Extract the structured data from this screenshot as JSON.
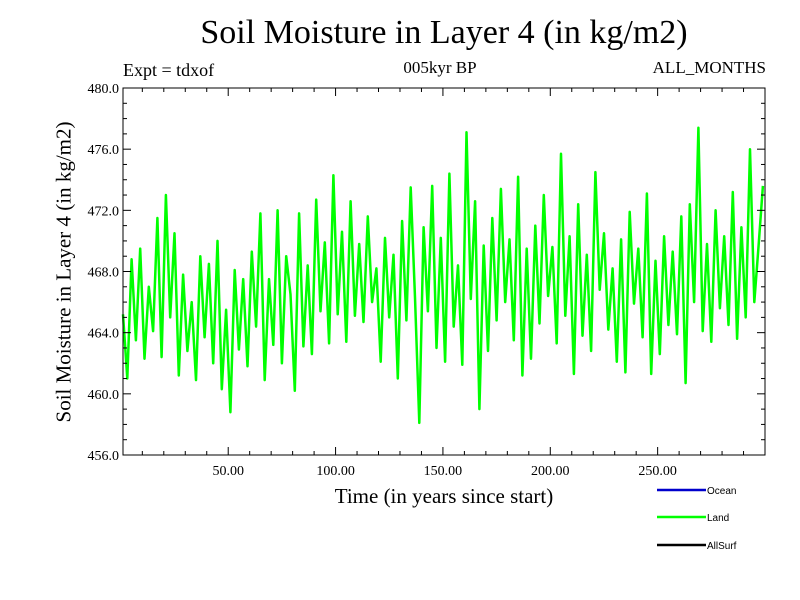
{
  "chart_data": {
    "type": "line",
    "title": "Soil Moisture in Layer 4 (in kg/m2)",
    "subtitle": "005kyr BP",
    "expt_label": "Expt = tdxof",
    "months_label": "ALL_MONTHS",
    "xlabel": "Time (in years since start)",
    "ylabel": "Soil Moisture in Layer 4 (in kg/m2)",
    "xlim": [
      1,
      300
    ],
    "ylim": [
      456.0,
      480.0
    ],
    "x_ticks": [
      50,
      100,
      150,
      200,
      250
    ],
    "x_tick_labels": [
      "50.00",
      "100.00",
      "150.00",
      "200.00",
      "250.00"
    ],
    "y_ticks": [
      456,
      460,
      464,
      468,
      472,
      476,
      480
    ],
    "y_tick_labels": [
      "456.0",
      "460.0",
      "464.0",
      "468.0",
      "472.0",
      "476.0",
      "480.0"
    ],
    "grid": false,
    "legend_position": "bottom-right",
    "legend": [
      {
        "name": "Ocean",
        "color": "#0000cc"
      },
      {
        "name": "Land",
        "color": "#00ff00"
      },
      {
        "name": "AllSurf",
        "color": "#000000"
      }
    ],
    "series": [
      {
        "name": "Land",
        "color": "#00ff00",
        "x": [
          1,
          3,
          5,
          7,
          9,
          11,
          13,
          15,
          17,
          19,
          21,
          23,
          25,
          27,
          29,
          31,
          33,
          35,
          37,
          39,
          41,
          43,
          45,
          47,
          49,
          51,
          53,
          55,
          57,
          59,
          61,
          63,
          65,
          67,
          69,
          71,
          73,
          75,
          77,
          79,
          81,
          83,
          85,
          87,
          89,
          91,
          93,
          95,
          97,
          99,
          101,
          103,
          105,
          107,
          109,
          111,
          113,
          115,
          117,
          119,
          121,
          123,
          125,
          127,
          129,
          131,
          133,
          135,
          137,
          139,
          141,
          143,
          145,
          147,
          149,
          151,
          153,
          155,
          157,
          159,
          161,
          163,
          165,
          167,
          169,
          171,
          173,
          175,
          177,
          179,
          181,
          183,
          185,
          187,
          189,
          191,
          193,
          195,
          197,
          199,
          201,
          203,
          205,
          207,
          209,
          211,
          213,
          215,
          217,
          219,
          221,
          223,
          225,
          227,
          229,
          231,
          233,
          235,
          237,
          239,
          241,
          243,
          245,
          247,
          249,
          251,
          253,
          255,
          257,
          259,
          261,
          263,
          265,
          267,
          269,
          271,
          273,
          275,
          277,
          279,
          281,
          283,
          285,
          287,
          289,
          291,
          293,
          295,
          297,
          299
        ],
        "values": [
          465.2,
          461.0,
          468.8,
          463.5,
          469.5,
          462.3,
          467.0,
          464.1,
          471.5,
          462.4,
          473.0,
          465.0,
          470.5,
          461.2,
          467.8,
          462.8,
          466.0,
          460.9,
          469.0,
          463.7,
          468.5,
          462.0,
          470.0,
          460.3,
          465.5,
          458.8,
          468.1,
          462.9,
          467.5,
          461.8,
          469.3,
          464.4,
          471.8,
          460.9,
          467.5,
          463.2,
          472.0,
          462.0,
          469.0,
          466.5,
          460.2,
          471.8,
          463.1,
          468.4,
          462.6,
          472.7,
          465.4,
          469.9,
          463.3,
          474.3,
          465.2,
          470.6,
          463.4,
          472.6,
          465.1,
          469.8,
          464.7,
          471.6,
          466.0,
          468.2,
          462.1,
          470.2,
          465.0,
          469.1,
          461.0,
          471.3,
          464.8,
          473.5,
          466.3,
          458.1,
          470.9,
          465.4,
          473.6,
          463.0,
          470.2,
          462.1,
          474.4,
          464.4,
          468.4,
          461.9,
          477.1,
          466.2,
          472.6,
          459.0,
          469.7,
          462.8,
          471.5,
          464.8,
          473.4,
          466.0,
          470.1,
          463.5,
          474.2,
          461.2,
          469.5,
          462.3,
          471.0,
          464.6,
          473.0,
          466.4,
          469.6,
          463.3,
          475.7,
          465.1,
          470.3,
          461.3,
          472.4,
          463.8,
          469.1,
          462.8,
          474.5,
          466.8,
          470.5,
          464.2,
          468.2,
          462.1,
          470.1,
          461.4,
          471.9,
          465.9,
          469.5,
          463.7,
          473.1,
          461.3,
          468.7,
          462.6,
          470.3,
          464.5,
          469.3,
          463.9,
          471.6,
          460.7,
          472.4,
          466.0,
          477.4,
          464.1,
          469.8,
          463.4,
          472.0,
          465.6,
          470.3,
          464.5,
          473.2,
          463.6,
          470.9,
          465.0,
          476.0,
          466.0,
          469.7,
          473.6
        ]
      }
    ]
  }
}
